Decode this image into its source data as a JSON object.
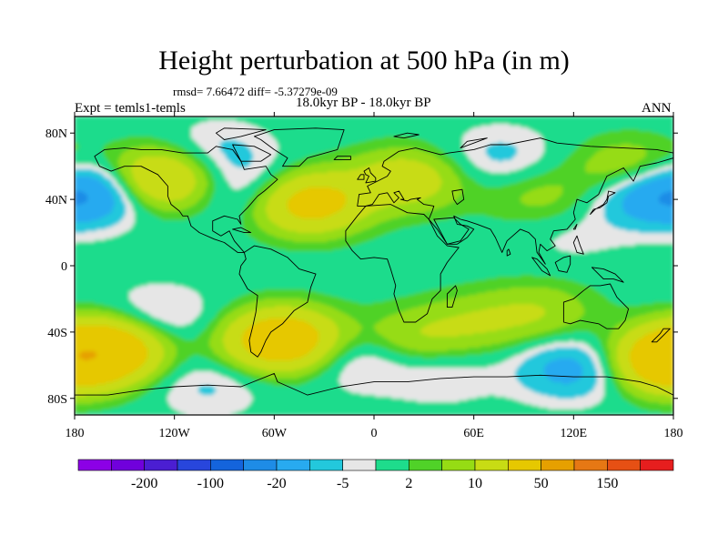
{
  "header": {
    "title": "Height perturbation at 500 hPa (in m)",
    "stats": "rmsd= 7.66472 diff= -5.37279e-09",
    "subtitle": "18.0kyr BP - 18.0kyr BP",
    "experiment": "Expt = temls1-temls",
    "season": "ANN"
  },
  "chart_data": {
    "type": "heatmap",
    "projection": "cylindrical-equidistant",
    "title": "Height perturbation at 500 hPa (in m)",
    "units": "m",
    "xlim": [
      -180,
      180
    ],
    "ylim": [
      -90,
      90
    ],
    "x_ticks": [
      {
        "value": -180,
        "label": "180"
      },
      {
        "value": -120,
        "label": "120W"
      },
      {
        "value": -60,
        "label": "60W"
      },
      {
        "value": 0,
        "label": "0"
      },
      {
        "value": 60,
        "label": "60E"
      },
      {
        "value": 120,
        "label": "120E"
      },
      {
        "value": 180,
        "label": "180"
      }
    ],
    "y_ticks": [
      {
        "value": 80,
        "label": "80N"
      },
      {
        "value": 40,
        "label": "40N"
      },
      {
        "value": 0,
        "label": "0"
      },
      {
        "value": -40,
        "label": "40S"
      },
      {
        "value": -80,
        "label": "80S"
      }
    ],
    "colorbar": {
      "colors": [
        "#8c00e6",
        "#7000dc",
        "#4b1ed2",
        "#2846dc",
        "#1464dc",
        "#1e8ce6",
        "#28aaf0",
        "#23c8dc",
        "#e6e6e6",
        "#1edc8c",
        "#50d228",
        "#96dc14",
        "#c8dc14",
        "#e6c800",
        "#e6a000",
        "#e67814",
        "#e65014",
        "#e61e1e"
      ],
      "labels": [
        {
          "after_bin": 1,
          "text": "-200"
        },
        {
          "after_bin": 3,
          "text": "-100"
        },
        {
          "after_bin": 5,
          "text": "-20"
        },
        {
          "after_bin": 7,
          "text": "-5"
        },
        {
          "after_bin": 9,
          "text": "2"
        },
        {
          "after_bin": 11,
          "text": "10"
        },
        {
          "after_bin": 13,
          "text": "50"
        },
        {
          "after_bin": 15,
          "text": "150"
        }
      ]
    },
    "field_anomalies": [
      {
        "lon": -165,
        "lat": 45,
        "value": -18
      },
      {
        "lon": 165,
        "lat": 42,
        "value": -15
      },
      {
        "lon": -130,
        "lat": 52,
        "value": 26
      },
      {
        "lon": -75,
        "lat": 45,
        "value": -9
      },
      {
        "lon": -95,
        "lat": 68,
        "value": -7
      },
      {
        "lon": -40,
        "lat": 38,
        "value": 28
      },
      {
        "lon": 20,
        "lat": 52,
        "value": 16
      },
      {
        "lon": 75,
        "lat": 65,
        "value": -7
      },
      {
        "lon": 100,
        "lat": 42,
        "value": 7
      },
      {
        "lon": 155,
        "lat": 58,
        "value": 12
      },
      {
        "lon": 118,
        "lat": 18,
        "value": -3
      },
      {
        "lon": -160,
        "lat": -50,
        "value": 32
      },
      {
        "lon": -130,
        "lat": -32,
        "value": -8
      },
      {
        "lon": -55,
        "lat": -45,
        "value": 35
      },
      {
        "lon": -10,
        "lat": -55,
        "value": -9
      },
      {
        "lon": 20,
        "lat": -45,
        "value": 10
      },
      {
        "lon": 60,
        "lat": -35,
        "value": 8
      },
      {
        "lon": 100,
        "lat": -28,
        "value": 9
      },
      {
        "lon": 120,
        "lat": -62,
        "value": -14
      },
      {
        "lon": 175,
        "lat": -58,
        "value": 30
      },
      {
        "lon": -100,
        "lat": -72,
        "value": -6
      },
      {
        "lon": 40,
        "lat": -65,
        "value": -5
      }
    ]
  }
}
